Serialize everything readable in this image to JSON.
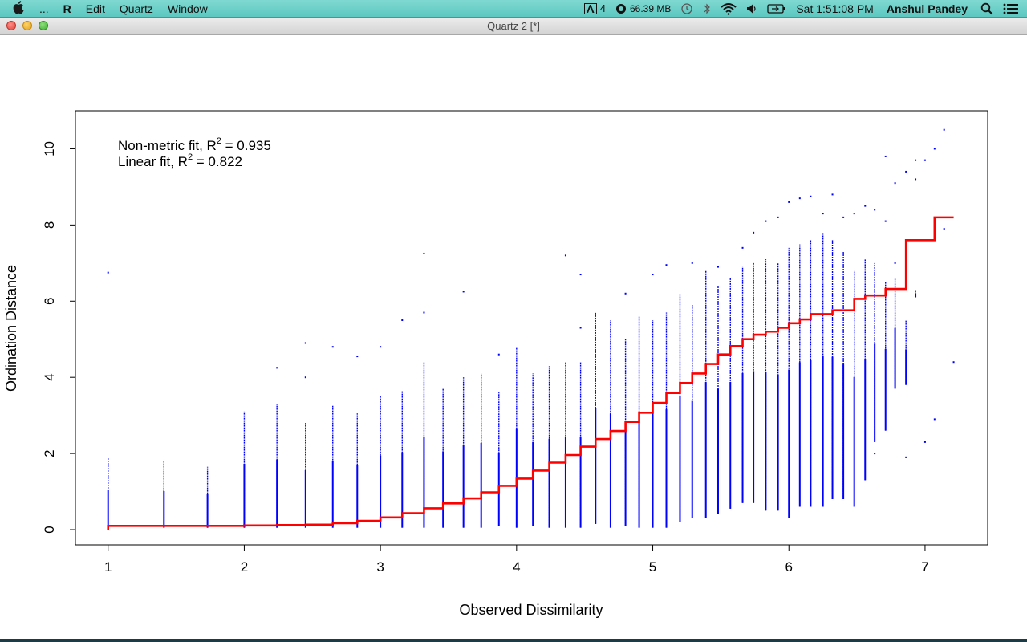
{
  "menubar": {
    "ellipsis": "...",
    "app_name": "R",
    "menus": [
      "Edit",
      "Quartz",
      "Window"
    ],
    "adobe_count": "4",
    "memory": "66.39 MB",
    "clock": "Sat 1:51:08 PM",
    "user": "Anshul Pandey",
    "icons": [
      "apple-icon",
      "adobe-icon",
      "memory-icon",
      "time-machine-icon",
      "bluetooth-icon",
      "wifi-icon",
      "volume-icon",
      "battery-icon",
      "spotlight-icon",
      "notification-icon"
    ]
  },
  "window": {
    "title": "Quartz 2 [*]"
  },
  "colors": {
    "points": "#0000ff",
    "fit_line": "#ff0000",
    "menubar": "#6fd1ca"
  },
  "chart_data": {
    "type": "scatter",
    "xlabel": "Observed Dissimilarity",
    "ylabel": "Ordination Distance",
    "xlim": [
      0.76,
      7.46
    ],
    "ylim": [
      -0.4,
      11.0
    ],
    "x_ticks": [
      "1",
      "2",
      "3",
      "4",
      "5",
      "6",
      "7"
    ],
    "y_ticks": [
      "0",
      "2",
      "4",
      "6",
      "8",
      "10"
    ],
    "legend_placement": "top-left",
    "annotations": [
      {
        "text": "Non-metric fit, R",
        "superscript": "2",
        "value_text": " = 0.935"
      },
      {
        "text": "Linear fit, R",
        "superscript": "2",
        "value_text": " = 0.822"
      }
    ],
    "point_columns": [
      {
        "x": 1.0,
        "ymin": 0.0,
        "ymax": 1.9,
        "outliers": [
          6.75
        ]
      },
      {
        "x": 1.41,
        "ymin": 0.05,
        "ymax": 1.8,
        "outliers": []
      },
      {
        "x": 1.73,
        "ymin": 0.05,
        "ymax": 1.65,
        "outliers": []
      },
      {
        "x": 2.0,
        "ymin": 0.05,
        "ymax": 3.1,
        "outliers": []
      },
      {
        "x": 2.24,
        "ymin": 0.05,
        "ymax": 3.3,
        "outliers": [
          4.25
        ]
      },
      {
        "x": 2.45,
        "ymin": 0.05,
        "ymax": 2.8,
        "outliers": [
          4.0,
          4.9
        ]
      },
      {
        "x": 2.65,
        "ymin": 0.05,
        "ymax": 3.25,
        "outliers": [
          4.8
        ]
      },
      {
        "x": 2.83,
        "ymin": 0.05,
        "ymax": 3.05,
        "outliers": [
          4.55
        ]
      },
      {
        "x": 3.0,
        "ymin": 0.05,
        "ymax": 3.5,
        "outliers": [
          4.8
        ]
      },
      {
        "x": 3.16,
        "ymin": 0.05,
        "ymax": 3.65,
        "outliers": [
          5.5
        ]
      },
      {
        "x": 3.32,
        "ymin": 0.05,
        "ymax": 4.4,
        "outliers": [
          5.7,
          7.25
        ]
      },
      {
        "x": 3.46,
        "ymin": 0.05,
        "ymax": 3.7,
        "outliers": []
      },
      {
        "x": 3.61,
        "ymin": 0.05,
        "ymax": 4.0,
        "outliers": [
          6.25
        ]
      },
      {
        "x": 3.74,
        "ymin": 0.05,
        "ymax": 4.1,
        "outliers": []
      },
      {
        "x": 3.87,
        "ymin": 0.1,
        "ymax": 3.6,
        "outliers": [
          4.6
        ]
      },
      {
        "x": 4.0,
        "ymin": 0.05,
        "ymax": 4.8,
        "outliers": []
      },
      {
        "x": 4.12,
        "ymin": 0.1,
        "ymax": 4.1,
        "outliers": []
      },
      {
        "x": 4.24,
        "ymin": 0.05,
        "ymax": 4.3,
        "outliers": []
      },
      {
        "x": 4.36,
        "ymin": 0.05,
        "ymax": 4.4,
        "outliers": [
          7.2
        ]
      },
      {
        "x": 4.47,
        "ymin": 0.05,
        "ymax": 4.4,
        "outliers": [
          5.3,
          6.7
        ]
      },
      {
        "x": 4.58,
        "ymin": 0.15,
        "ymax": 5.7,
        "outliers": []
      },
      {
        "x": 4.69,
        "ymin": 0.05,
        "ymax": 5.5,
        "outliers": []
      },
      {
        "x": 4.8,
        "ymin": 0.1,
        "ymax": 5.0,
        "outliers": [
          6.2
        ]
      },
      {
        "x": 4.9,
        "ymin": 0.05,
        "ymax": 5.6,
        "outliers": []
      },
      {
        "x": 5.0,
        "ymin": 0.05,
        "ymax": 5.5,
        "outliers": [
          6.7
        ]
      },
      {
        "x": 5.1,
        "ymin": 0.05,
        "ymax": 5.7,
        "outliers": [
          6.95
        ]
      },
      {
        "x": 5.2,
        "ymin": 0.2,
        "ymax": 6.2,
        "outliers": []
      },
      {
        "x": 5.29,
        "ymin": 0.3,
        "ymax": 5.9,
        "outliers": [
          7.0
        ]
      },
      {
        "x": 5.39,
        "ymin": 0.3,
        "ymax": 6.8,
        "outliers": []
      },
      {
        "x": 5.48,
        "ymin": 0.4,
        "ymax": 6.4,
        "outliers": [
          6.9
        ]
      },
      {
        "x": 5.57,
        "ymin": 0.55,
        "ymax": 6.6,
        "outliers": []
      },
      {
        "x": 5.66,
        "ymin": 0.7,
        "ymax": 6.9,
        "outliers": [
          7.4
        ]
      },
      {
        "x": 5.74,
        "ymin": 0.7,
        "ymax": 7.0,
        "outliers": [
          7.8
        ]
      },
      {
        "x": 5.83,
        "ymin": 0.5,
        "ymax": 7.1,
        "outliers": [
          8.1
        ]
      },
      {
        "x": 5.92,
        "ymin": 0.5,
        "ymax": 7.0,
        "outliers": [
          8.2
        ]
      },
      {
        "x": 6.0,
        "ymin": 0.3,
        "ymax": 7.4,
        "outliers": [
          8.6
        ]
      },
      {
        "x": 6.08,
        "ymin": 0.6,
        "ymax": 7.5,
        "outliers": [
          8.7
        ]
      },
      {
        "x": 6.16,
        "ymin": 0.6,
        "ymax": 7.6,
        "outliers": [
          8.75
        ]
      },
      {
        "x": 6.25,
        "ymin": 0.6,
        "ymax": 7.8,
        "outliers": [
          8.3
        ]
      },
      {
        "x": 6.32,
        "ymin": 0.8,
        "ymax": 7.6,
        "outliers": [
          8.8
        ]
      },
      {
        "x": 6.4,
        "ymin": 0.8,
        "ymax": 7.3,
        "outliers": [
          8.2
        ]
      },
      {
        "x": 6.48,
        "ymin": 0.6,
        "ymax": 6.8,
        "outliers": [
          8.3
        ]
      },
      {
        "x": 6.56,
        "ymin": 1.3,
        "ymax": 7.1,
        "outliers": [
          8.5
        ]
      },
      {
        "x": 6.63,
        "ymin": 2.3,
        "ymax": 7.0,
        "outliers": [
          8.4,
          2.0
        ]
      },
      {
        "x": 6.71,
        "ymin": 2.6,
        "ymax": 6.5,
        "outliers": [
          8.1,
          9.8
        ]
      },
      {
        "x": 6.78,
        "ymin": 3.7,
        "ymax": 6.6,
        "outliers": [
          7.0,
          9.1
        ]
      },
      {
        "x": 6.86,
        "ymin": 3.8,
        "ymax": 5.5,
        "outliers": [
          1.9,
          9.4
        ]
      },
      {
        "x": 6.93,
        "ymin": 6.1,
        "ymax": 6.3,
        "outliers": [
          9.2,
          9.7
        ]
      },
      {
        "x": 7.0,
        "ymin": 2.3,
        "ymax": 2.3,
        "outliers": [
          9.7
        ]
      },
      {
        "x": 7.07,
        "ymin": 2.9,
        "ymax": 2.9,
        "outliers": [
          10.0
        ]
      },
      {
        "x": 7.14,
        "ymin": 7.9,
        "ymax": 7.9,
        "outliers": [
          10.5
        ]
      },
      {
        "x": 7.21,
        "ymin": 4.4,
        "ymax": 4.4,
        "outliers": []
      }
    ],
    "series": [
      {
        "type": "step",
        "x": [
          1.0,
          1.41,
          1.73,
          2.0,
          2.24,
          2.45,
          2.65,
          2.83,
          3.0,
          3.16,
          3.32,
          3.46,
          3.61,
          3.74,
          3.87,
          4.0,
          4.12,
          4.24,
          4.36,
          4.47,
          4.58,
          4.69,
          4.8,
          4.9,
          5.0,
          5.1,
          5.2,
          5.29,
          5.39,
          5.48,
          5.57,
          5.66,
          5.74,
          5.83,
          5.92,
          6.0,
          6.08,
          6.16,
          6.25,
          6.32,
          6.4,
          6.48,
          6.56,
          6.63,
          6.71,
          6.86,
          7.07,
          7.21
        ],
        "y": [
          0.1,
          0.1,
          0.1,
          0.11,
          0.12,
          0.13,
          0.17,
          0.23,
          0.32,
          0.43,
          0.56,
          0.69,
          0.82,
          0.98,
          1.15,
          1.34,
          1.55,
          1.76,
          1.96,
          2.18,
          2.38,
          2.59,
          2.83,
          3.07,
          3.33,
          3.59,
          3.85,
          4.1,
          4.35,
          4.6,
          4.82,
          5.0,
          5.12,
          5.2,
          5.3,
          5.42,
          5.52,
          5.66,
          5.66,
          5.76,
          5.76,
          6.06,
          6.15,
          6.15,
          6.32,
          7.6,
          8.2,
          8.2
        ]
      }
    ]
  }
}
